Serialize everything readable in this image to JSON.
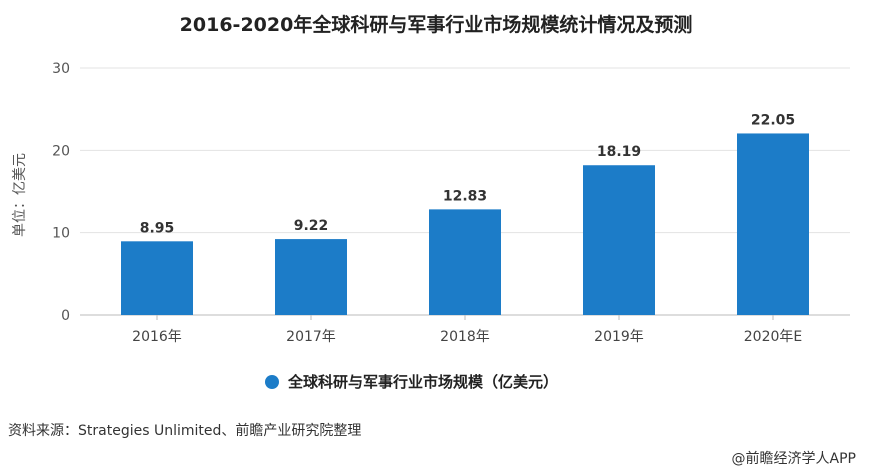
{
  "chart_data": {
    "type": "bar",
    "title": "2016-2020年全球科研与军事行业市场规模统计情况及预测",
    "ylabel": "单位：亿美元",
    "categories": [
      "2016年",
      "2017年",
      "2018年",
      "2019年",
      "2020年E"
    ],
    "series": [
      {
        "name": "全球科研与军事行业市场规模（亿美元）",
        "values": [
          8.95,
          9.22,
          12.83,
          18.19,
          22.05
        ],
        "data_labels": [
          "8.95",
          "9.22",
          "12.83",
          "18.19",
          "22.05"
        ]
      }
    ],
    "yticks": [
      "0",
      "10",
      "20",
      "30"
    ],
    "ylim": [
      0,
      30
    ],
    "grid": true,
    "legend_position": "bottom",
    "bar_color": "#1c7cc8"
  },
  "source": "资料来源：Strategies Unlimited、前瞻产业研究院整理",
  "credit": "@前瞻经济学人APP"
}
